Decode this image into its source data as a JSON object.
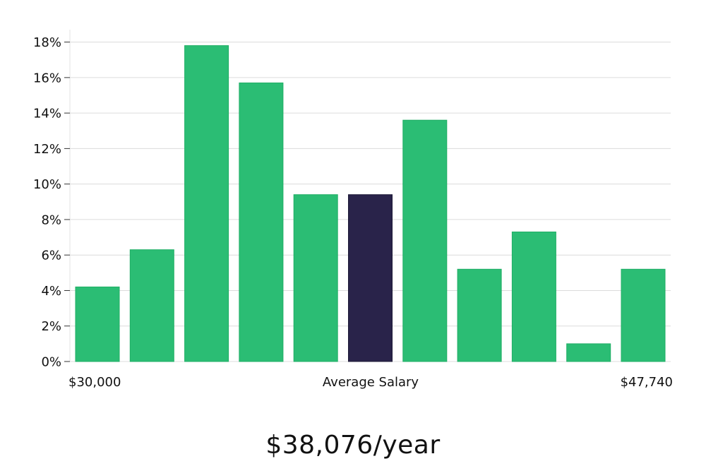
{
  "chart_data": {
    "type": "bar",
    "bin_count": 11,
    "values": [
      4.2,
      6.3,
      17.8,
      15.7,
      9.4,
      9.4,
      13.6,
      5.2,
      7.3,
      1.0,
      5.2
    ],
    "highlight_index": 5,
    "y_ticks": [
      "0%",
      "2%",
      "4%",
      "6%",
      "8%",
      "10%",
      "12%",
      "14%",
      "16%",
      "18%"
    ],
    "y_tick_values": [
      0,
      2,
      4,
      6,
      8,
      10,
      12,
      14,
      16,
      18
    ],
    "ylim": [
      0,
      18.7
    ],
    "grid": true,
    "x_min_label": "$30,000",
    "x_center_label": "Average Salary",
    "x_max_label": "$47,740",
    "colors": {
      "bar": "#2bbd74",
      "bar_edge": "#1fae65",
      "highlight": "#29234a"
    }
  },
  "salary_figure": "$38,076/year"
}
